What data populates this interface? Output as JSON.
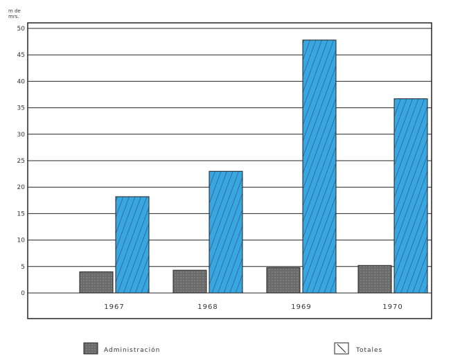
{
  "chart_data": {
    "type": "bar",
    "title": "",
    "unit_label_line1": "m de",
    "unit_label_line2": "mrs.",
    "categories": [
      "1967",
      "1968",
      "1969",
      "1970"
    ],
    "series": [
      {
        "name": "Administración",
        "values": [
          4,
          4.3,
          4.8,
          5.2
        ],
        "color": "#6b6b6b"
      },
      {
        "name": "Totales",
        "values": [
          18.2,
          23,
          47.8,
          36.7
        ],
        "color": "#3aa6df"
      }
    ],
    "ylim": [
      -5,
      50
    ],
    "yticks": [
      0,
      5,
      10,
      15,
      20,
      25,
      30,
      35,
      40,
      45,
      50
    ],
    "ytick_labels": [
      "0",
      "5",
      "10",
      "15",
      "20",
      "25",
      "30",
      "35",
      "40",
      "45",
      "50"
    ],
    "grid": true,
    "legend_position": "bottom"
  }
}
